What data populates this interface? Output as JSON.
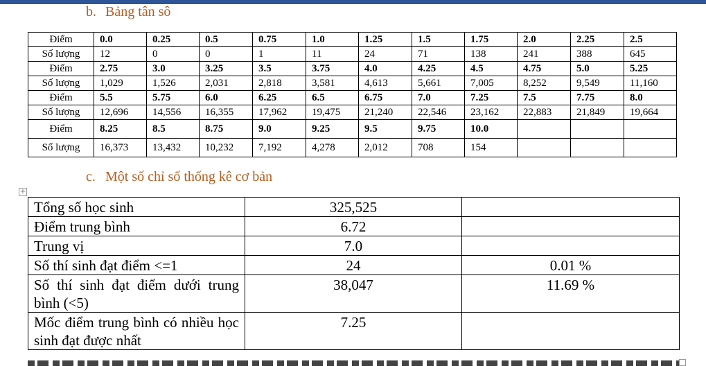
{
  "section_b": {
    "number": "b.",
    "title": "Bảng tân sô"
  },
  "section_c": {
    "number": "c.",
    "title": "Một số chỉ số thống kê cơ bản"
  },
  "freq_table": {
    "score_label": "Điểm",
    "count_label": "Số lượng",
    "rows": [
      {
        "scores": [
          "0.0",
          "0.25",
          "0.5",
          "0.75",
          "1.0",
          "1.25",
          "1.5",
          "1.75",
          "2.0",
          "2.25",
          "2.5"
        ],
        "counts": [
          "12",
          "0",
          "0",
          "1",
          "11",
          "24",
          "71",
          "138",
          "241",
          "388",
          "645"
        ]
      },
      {
        "scores": [
          "2.75",
          "3.0",
          "3.25",
          "3.5",
          "3.75",
          "4.0",
          "4.25",
          "4.5",
          "4.75",
          "5.0",
          "5.25"
        ],
        "counts": [
          "1,029",
          "1,526",
          "2,031",
          "2,818",
          "3,581",
          "4,613",
          "5,661",
          "7,005",
          "8,252",
          "9,549",
          "11,160"
        ]
      },
      {
        "scores": [
          "5.5",
          "5.75",
          "6.0",
          "6.25",
          "6.5",
          "6.75",
          "7.0",
          "7.25",
          "7.5",
          "7.75",
          "8.0"
        ],
        "counts": [
          "12,696",
          "14,556",
          "16,355",
          "17,962",
          "19,475",
          "21,240",
          "22,546",
          "23,162",
          "22,883",
          "21,849",
          "19,664"
        ]
      },
      {
        "scores": [
          "8.25",
          "8.5",
          "8.75",
          "9.0",
          "9.25",
          "9.5",
          "9.75",
          "10.0",
          "",
          "",
          ""
        ],
        "counts": [
          "16,373",
          "13,432",
          "10,232",
          "7,192",
          "4,278",
          "2,012",
          "708",
          "154",
          "",
          "",
          ""
        ]
      }
    ]
  },
  "stats_table": {
    "rows": [
      {
        "label": "Tổng số học sinh",
        "value": "325,525",
        "extra": ""
      },
      {
        "label": "Điểm trung bình",
        "value": "6.72",
        "extra": ""
      },
      {
        "label": "Trung vị",
        "value": "7.0",
        "extra": ""
      },
      {
        "label": "Số thí sinh đạt điểm <=1",
        "value": "24",
        "extra": "0.01 %"
      },
      {
        "label": "Số thí sinh đạt điểm dưới trung bình (<5)",
        "value": "38,047",
        "extra": "11.69 %"
      },
      {
        "label": "Mốc điểm trung bình có nhiều học sinh đạt được nhất",
        "value": "7.25",
        "extra": ""
      }
    ]
  }
}
